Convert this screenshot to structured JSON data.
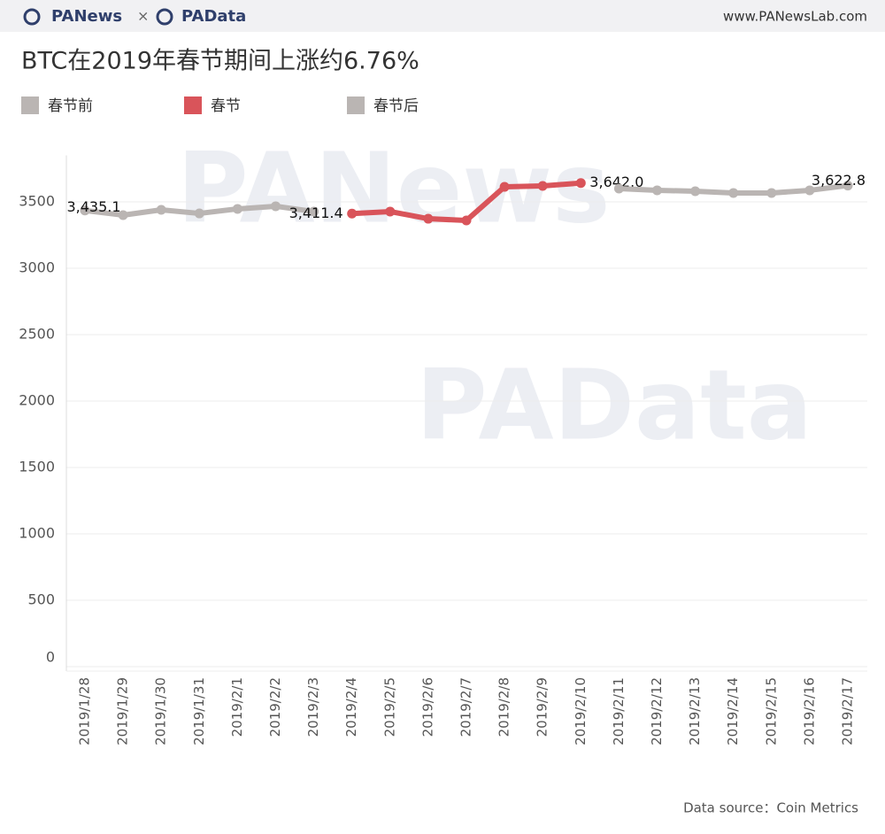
{
  "header": {
    "brand_left": "PANews",
    "separator": "×",
    "brand_right": "PAData",
    "website": "www.PANewsLab.com"
  },
  "watermarks": [
    "PANews",
    "PAData"
  ],
  "chart_data": {
    "type": "line",
    "title": "BTC在2019年春节期间上涨约6.76%",
    "categories": [
      "2019/1/28",
      "2019/1/29",
      "2019/1/30",
      "2019/1/31",
      "2019/2/1",
      "2019/2/2",
      "2019/2/3",
      "2019/2/4",
      "2019/2/5",
      "2019/2/6",
      "2019/2/7",
      "2019/2/8",
      "2019/2/9",
      "2019/2/10",
      "2019/2/11",
      "2019/2/12",
      "2019/2/13",
      "2019/2/14",
      "2019/2/15",
      "2019/2/16",
      "2019/2/17"
    ],
    "series": [
      {
        "name": "春节前",
        "color": "#bab5b3",
        "values": [
          3435.1,
          3400,
          3440,
          3413,
          3447,
          3467,
          3427,
          null,
          null,
          null,
          null,
          null,
          null,
          null,
          null,
          null,
          null,
          null,
          null,
          null,
          null
        ],
        "value_labels": [
          "3,435.1",
          null,
          null,
          null,
          null,
          null,
          null,
          null,
          null,
          null,
          null,
          null,
          null,
          null,
          null,
          null,
          null,
          null,
          null,
          null,
          null
        ]
      },
      {
        "name": "春节",
        "color": "#d9545a",
        "values": [
          null,
          null,
          null,
          null,
          null,
          null,
          null,
          3411.4,
          3427,
          3373,
          3360,
          3613,
          3620,
          3642.0,
          null,
          null,
          null,
          null,
          null,
          null,
          null
        ],
        "value_labels": [
          null,
          null,
          null,
          null,
          null,
          null,
          null,
          "3,411.4",
          null,
          null,
          null,
          null,
          null,
          "3,642.0",
          null,
          null,
          null,
          null,
          null,
          null,
          null
        ]
      },
      {
        "name": "春节后",
        "color": "#bab5b3",
        "values": [
          null,
          null,
          null,
          null,
          null,
          null,
          null,
          null,
          null,
          null,
          null,
          null,
          null,
          null,
          3600,
          3587,
          3580,
          3567,
          3567,
          3587,
          3622.8
        ],
        "value_labels": [
          null,
          null,
          null,
          null,
          null,
          null,
          null,
          null,
          null,
          null,
          null,
          null,
          null,
          null,
          null,
          null,
          null,
          null,
          null,
          null,
          "3,622.8"
        ]
      }
    ],
    "ylim": [
      0,
      3850
    ],
    "yticks": [
      0,
      500,
      1000,
      1500,
      2000,
      2500,
      3000,
      3500
    ],
    "grid": true,
    "source": "Data source：Coin Metrics"
  }
}
